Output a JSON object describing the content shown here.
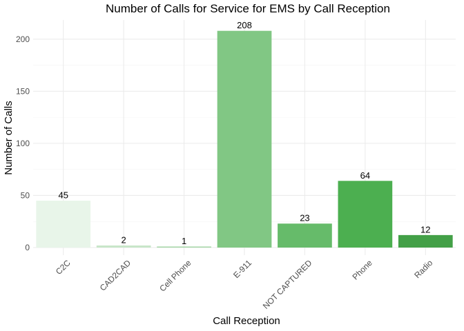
{
  "chart_data": {
    "type": "bar",
    "title": "Number of Calls for Service for EMS by Call Reception",
    "xlabel": "Call Reception",
    "ylabel": "Number of Calls",
    "categories": [
      "C2C",
      "CAD2CAD",
      "Cell Phone",
      "E-911",
      "NOT CAPTURED",
      "Phone",
      "Radio"
    ],
    "values": [
      45,
      2,
      1,
      208,
      23,
      64,
      12
    ],
    "colors": [
      "#e8f5e9",
      "#c8e6c9",
      "#a5d6a7",
      "#81c784",
      "#66bb6a",
      "#4caf50",
      "#43a047"
    ],
    "yticks": [
      0,
      50,
      100,
      150,
      200
    ],
    "ylim": [
      0,
      218
    ],
    "grid": true,
    "legend": "none"
  }
}
